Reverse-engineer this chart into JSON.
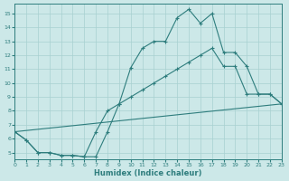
{
  "xlabel": "Humidex (Indice chaleur)",
  "xlim": [
    0,
    23
  ],
  "ylim": [
    4.5,
    15.7
  ],
  "yticks": [
    5,
    6,
    7,
    8,
    9,
    10,
    11,
    12,
    13,
    14,
    15
  ],
  "xticks": [
    0,
    1,
    2,
    3,
    4,
    5,
    6,
    7,
    8,
    9,
    10,
    11,
    12,
    13,
    14,
    15,
    16,
    17,
    18,
    19,
    20,
    21,
    22,
    23
  ],
  "bg_color": "#cce8e8",
  "line_color": "#2e7d7d",
  "grid_color": "#a8d0d0",
  "curve1_x": [
    0,
    1,
    2,
    3,
    4,
    5,
    6,
    7,
    8,
    9,
    10,
    11,
    12,
    13,
    14,
    15,
    16,
    17,
    18,
    19,
    20,
    21,
    22,
    23
  ],
  "curve1_y": [
    6.5,
    5.9,
    5.0,
    5.0,
    4.8,
    4.8,
    4.7,
    4.7,
    6.5,
    8.5,
    11.1,
    12.5,
    13.0,
    13.0,
    14.7,
    15.3,
    14.3,
    15.0,
    12.2,
    12.2,
    11.2,
    9.2,
    9.2,
    8.5
  ],
  "curve2_x": [
    0,
    1,
    2,
    3,
    4,
    5,
    6,
    7,
    8,
    9,
    10,
    11,
    12,
    13,
    14,
    15,
    16,
    17,
    18,
    19,
    20,
    21,
    22,
    23
  ],
  "curve2_y": [
    6.5,
    5.9,
    5.0,
    5.0,
    4.8,
    4.8,
    4.7,
    6.5,
    8.0,
    8.5,
    9.0,
    9.5,
    10.0,
    10.5,
    11.0,
    11.5,
    12.0,
    12.5,
    11.2,
    11.2,
    9.2,
    9.2,
    9.2,
    8.5
  ],
  "line3_x": [
    0,
    23
  ],
  "line3_y": [
    6.5,
    8.5
  ]
}
